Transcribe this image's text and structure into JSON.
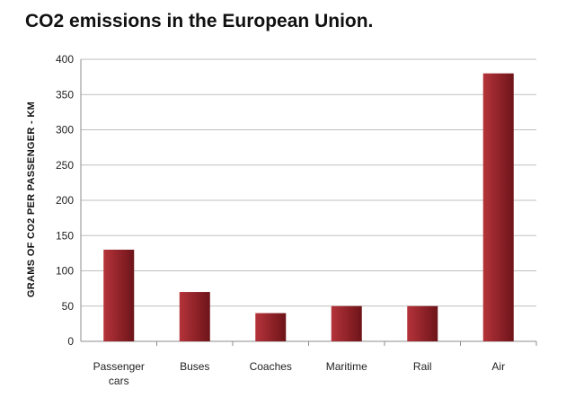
{
  "chart_data": {
    "type": "bar",
    "title": "CO2 emissions in the European Union.",
    "xlabel": "",
    "ylabel": "GRAMS OF CO2 PER PASSENGER - KM",
    "categories": [
      [
        "Passenger",
        "cars"
      ],
      [
        "Buses"
      ],
      [
        "Coaches"
      ],
      [
        "Maritime"
      ],
      [
        "Rail"
      ],
      [
        "Air"
      ]
    ],
    "values": [
      130,
      70,
      40,
      50,
      50,
      380
    ],
    "ylim": [
      0,
      400
    ],
    "yticks": [
      0,
      50,
      100,
      150,
      200,
      250,
      300,
      350,
      400
    ],
    "grid": true,
    "legend": "none",
    "colors": {
      "bar_light": "#b5333a",
      "bar_dark": "#6d1419",
      "grid": "#bfbfbf",
      "axis": "#8c8c8c"
    }
  }
}
